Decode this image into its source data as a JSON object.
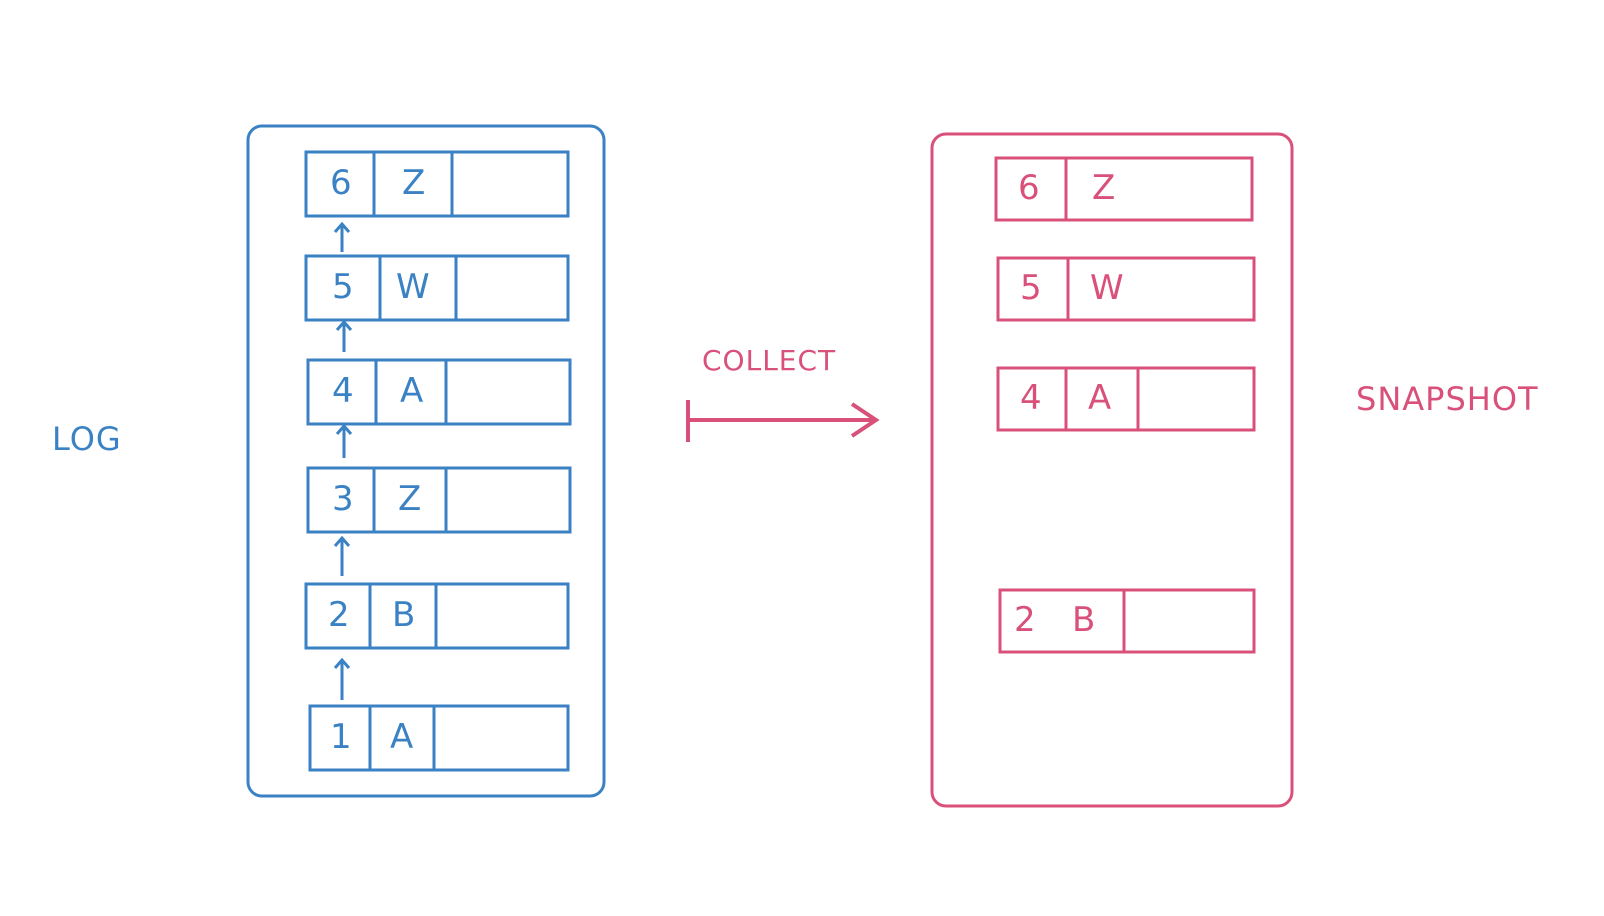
{
  "colors": {
    "log": "#3b82c4",
    "snapshot": "#d9517a"
  },
  "log": {
    "label": "LOG",
    "entries": [
      {
        "index": "6",
        "key": "Z"
      },
      {
        "index": "5",
        "key": "W"
      },
      {
        "index": "4",
        "key": "A"
      },
      {
        "index": "3",
        "key": "Z"
      },
      {
        "index": "2",
        "key": "B"
      },
      {
        "index": "1",
        "key": "A"
      }
    ]
  },
  "collect": {
    "label": "COLLECT"
  },
  "snapshot": {
    "label": "SNAPSHOT",
    "entries": [
      {
        "index": "6",
        "key": "Z"
      },
      {
        "index": "5",
        "key": "W"
      },
      {
        "index": "4",
        "key": "A"
      },
      {
        "index": "2",
        "key": "B"
      }
    ]
  }
}
